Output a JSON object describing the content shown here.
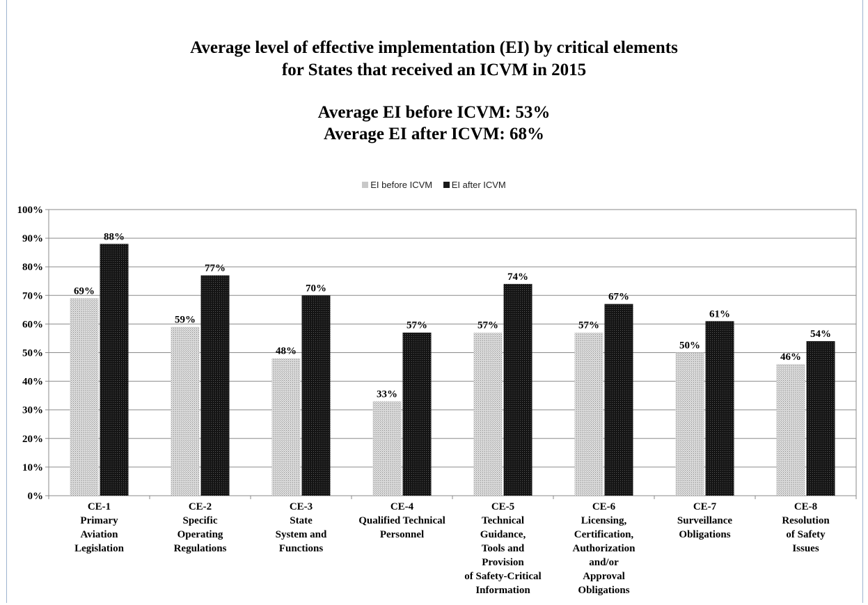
{
  "chart_data": {
    "type": "bar",
    "title_lines": [
      "Average level of effective implementation (EI) by critical elements",
      "for States that received an ICVM in 2015"
    ],
    "subtitle_lines": [
      "Average EI before ICVM: 53%",
      "Average EI after ICVM: 68%"
    ],
    "categories": [
      [
        "CE-1",
        "Primary",
        "Aviation",
        "Legislation"
      ],
      [
        "CE-2",
        "Specific",
        "Operating",
        "Regulations"
      ],
      [
        "CE-3",
        "State",
        "System and",
        "Functions"
      ],
      [
        "CE-4",
        "Qualified Technical",
        "Personnel"
      ],
      [
        "CE-5",
        "Technical",
        "Guidance,",
        "Tools and",
        "Provision",
        "of Safety-Critical",
        "Information"
      ],
      [
        "CE-6",
        "Licensing,",
        "Certification,",
        "Authorization",
        "and/or",
        "Approval",
        "Obligations"
      ],
      [
        "CE-7",
        "Surveillance",
        "Obligations"
      ],
      [
        "CE-8",
        "Resolution",
        "of Safety",
        "Issues"
      ]
    ],
    "series": [
      {
        "name": "EI before ICVM",
        "values": [
          69,
          59,
          48,
          33,
          57,
          57,
          50,
          46
        ],
        "labels": [
          "69%",
          "59%",
          "48%",
          "33%",
          "57%",
          "57%",
          "50%",
          "46%"
        ],
        "color": "#cfcfcf"
      },
      {
        "name": "EI after ICVM",
        "values": [
          88,
          77,
          70,
          57,
          74,
          67,
          61,
          54
        ],
        "labels": [
          "88%",
          "77%",
          "70%",
          "57%",
          "74%",
          "67%",
          "61%",
          "54%"
        ],
        "color": "#1a1a1a"
      }
    ],
    "yticks": [
      "0%",
      "10%",
      "20%",
      "30%",
      "40%",
      "50%",
      "60%",
      "70%",
      "80%",
      "90%",
      "100%"
    ],
    "ylim": [
      0,
      100
    ],
    "grid": true,
    "legend": "top-center"
  }
}
